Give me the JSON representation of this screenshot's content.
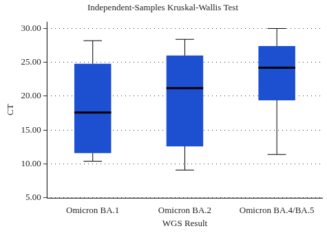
{
  "chart_data": {
    "type": "boxplot",
    "title": "Independent-Samples Kruskal-Wallis Test",
    "x_label": "WGS Result",
    "y_label": "CT",
    "categories": [
      "Omicron BA.1",
      "Omicron BA.2",
      "Omicron BA.4/BA.5"
    ],
    "min": [
      10.4,
      9.1,
      11.4
    ],
    "q1": [
      11.6,
      12.6,
      19.4
    ],
    "median": [
      17.6,
      21.2,
      24.2
    ],
    "q3": [
      24.8,
      26.0,
      27.4
    ],
    "max": [
      28.2,
      28.4,
      30.0
    ],
    "color": "#1c50d0",
    "ylim": [
      5,
      31
    ],
    "yticks": [
      {
        "value": 5,
        "label": "5.00"
      },
      {
        "value": 10,
        "label": "10.00"
      },
      {
        "value": 15,
        "label": "15.00"
      },
      {
        "value": 20,
        "label": "20.00"
      },
      {
        "value": 25,
        "label": "25.00"
      },
      {
        "value": 30,
        "label": "30.00"
      }
    ],
    "grid": true
  }
}
